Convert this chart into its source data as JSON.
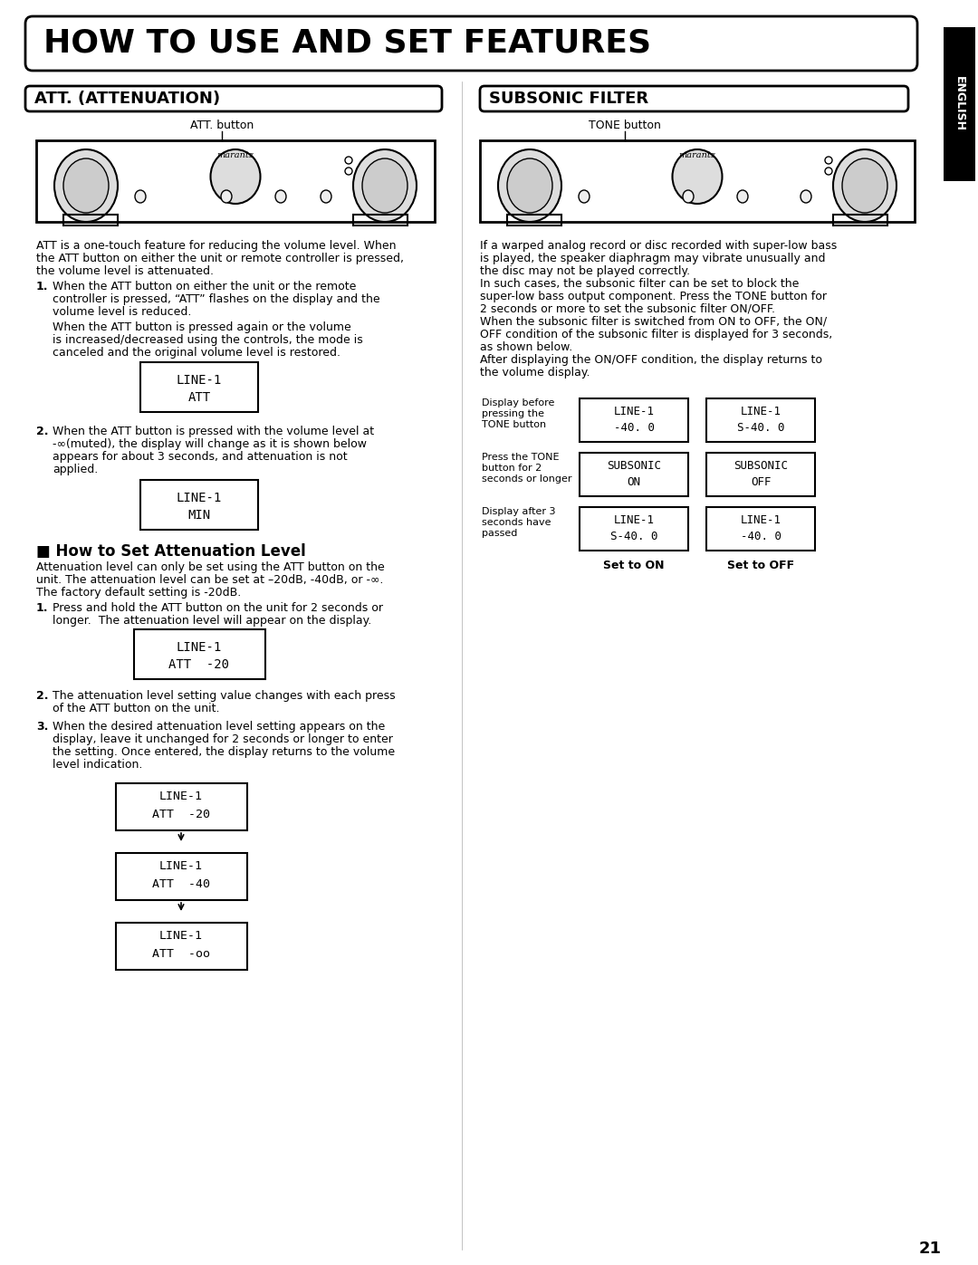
{
  "title": "HOW TO USE AND SET FEATURES",
  "section_left": "ATT. (ATTENUATION)",
  "section_right": "SUBSONIC FILTER",
  "english_label": "ENGLISH",
  "bg_color": "#ffffff",
  "text_color": "#000000",
  "page_number": "21",
  "att_button_label": "ATT. button",
  "tone_button_label": "TONE button",
  "att_intro": "ATT is a one-touch feature for reducing the volume level. When\nthe ATT button on either the unit or remote controller is pressed,\nthe volume level is attenuated.",
  "att_point1a": "When the ATT button on either the unit or the remote\ncontroller is pressed, “ATT” flashes on the display and the\nvolume level is reduced.",
  "att_point1b": "When the ATT button is pressed again or the volume\nis increased/decreased using the controls, the mode is\ncanceled and the original volume level is restored.",
  "display1_line1": "LINE-1",
  "display1_line2": "ATT",
  "att_point2": "When the ATT button is pressed with the volume level at\n-∞(muted), the display will change as it is shown below\nappears for about 3 seconds, and attenuation is not\napplied.",
  "display2_line1": "LINE-1",
  "display2_line2": "MIN",
  "how_to_title": "■ How to Set Attenuation Level",
  "how_to_intro": "Attenuation level can only be set using the ATT button on the\nunit. The attenuation level can be set at –20dB, -40dB, or -∞.\nThe factory default setting is -20dB.",
  "how_point1": "Press and hold the ATT button on the unit for 2 seconds or\nlonger.  The attenuation level will appear on the display.",
  "display3_line1": "LINE-1",
  "display3_line2": "ATT  -20",
  "how_point2": "The attenuation level setting value changes with each press\nof the ATT button on the unit.",
  "how_point3": "When the desired attenuation level setting appears on the\ndisplay, leave it unchanged for 2 seconds or longer to enter\nthe setting. Once entered, the display returns to the volume\nlevel indication.",
  "display4a_line1": "LINE-1",
  "display4a_line2": "ATT  -20",
  "display4b_line1": "LINE-1",
  "display4b_line2": "ATT  -40",
  "display4c_line1": "LINE-1",
  "display4c_line2": "ATT  -oo",
  "subsonic_intro": "If a warped analog record or disc recorded with super-low bass\nis played, the speaker diaphragm may vibrate unusually and\nthe disc may not be played correctly.\nIn such cases, the subsonic filter can be set to block the\nsuper-low bass output component. Press the TONE button for\n2 seconds or more to set the subsonic filter ON/OFF.\nWhen the subsonic filter is switched from ON to OFF, the ON/\nOFF condition of the subsonic filter is displayed for 3 seconds,\nas shown below.\nAfter displaying the ON/OFF condition, the display returns to\nthe volume display.",
  "sub_col_labels": [
    "Display before\npressing the\nTONE button",
    "Press the TONE\nbutton for 2\nseconds or longer",
    "Display after 3\nseconds have\npassed"
  ],
  "sub_left_displays": [
    [
      "LINE-1",
      "-40. 0"
    ],
    [
      "SUBSONIC",
      "ON"
    ],
    [
      "LINE-1",
      "S-40. 0"
    ]
  ],
  "sub_right_displays": [
    [
      "LINE-1",
      "S-40. 0"
    ],
    [
      "SUBSONIC",
      "OFF"
    ],
    [
      "LINE-1",
      "-40. 0"
    ]
  ],
  "set_on_label": "Set to ON",
  "set_off_label": "Set to OFF"
}
